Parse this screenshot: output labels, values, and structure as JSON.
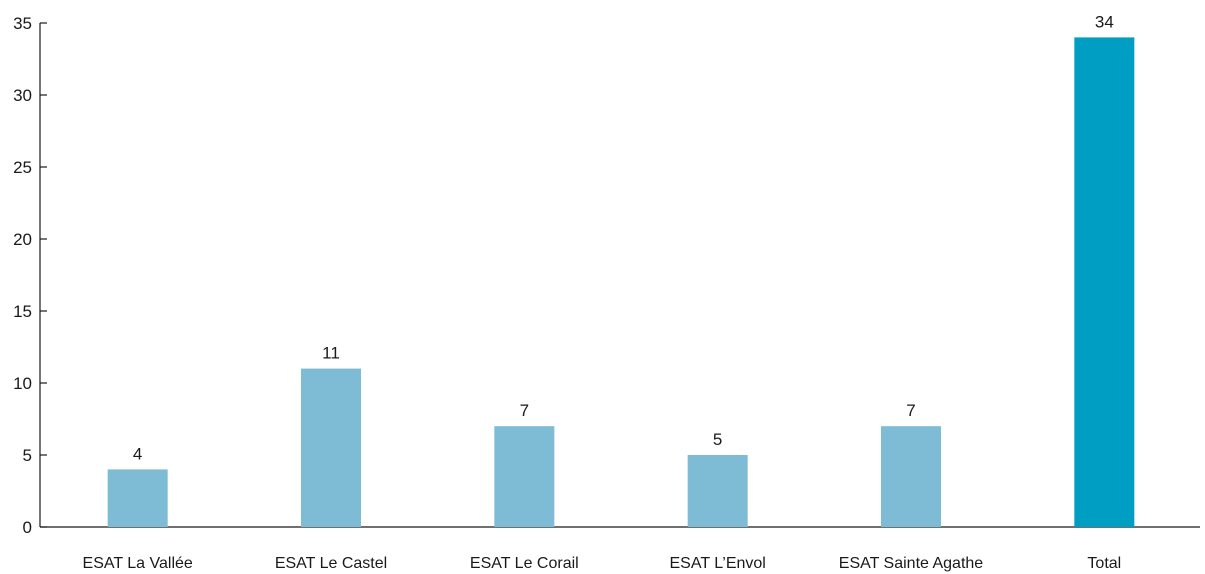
{
  "chart_data": {
    "type": "bar",
    "categories": [
      "ESAT La Vallée",
      "ESAT Le Castel",
      "ESAT Le Corail",
      "ESAT L’Envol",
      "ESAT Sainte Agathe",
      "Total"
    ],
    "values": [
      4,
      11,
      7,
      5,
      7,
      34
    ],
    "data_labels": [
      "4",
      "11",
      "7",
      "5",
      "7",
      "34"
    ],
    "yticks": [
      0,
      5,
      10,
      15,
      20,
      25,
      30,
      35
    ],
    "ylim": [
      0,
      35
    ],
    "title": "",
    "xlabel": "",
    "ylabel": "",
    "grid": false,
    "colors": {
      "bar": "#7ebbd4",
      "total_bar": "#009ec3",
      "axis": "#1a1a1a"
    }
  }
}
